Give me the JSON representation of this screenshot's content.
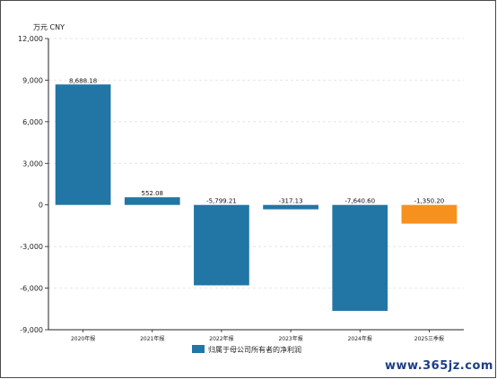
{
  "chart_data": {
    "type": "bar",
    "unit_label": "万元  CNY",
    "categories": [
      "2020年报",
      "2021年报",
      "2022年报",
      "2023年报",
      "2024年报",
      "2025三季报"
    ],
    "series": [
      {
        "name": "归属于母公司所有者的净利润",
        "values": [
          8688.18,
          552.08,
          -5799.21,
          -317.13,
          -7640.6,
          -1350.2
        ],
        "data_labels": [
          "8,688.18",
          "552.08",
          "-5,799.21",
          "-317.13",
          "-7,640.60",
          "-1,350.20"
        ]
      }
    ],
    "yticks": [
      {
        "value": 12000,
        "label": "12,000"
      },
      {
        "value": 9000,
        "label": "9,000"
      },
      {
        "value": 6000,
        "label": "6,000"
      },
      {
        "value": 3000,
        "label": "3,000"
      },
      {
        "value": 0,
        "label": "0"
      },
      {
        "value": -3000,
        "label": "-3,000"
      },
      {
        "value": -6000,
        "label": "-6,000"
      },
      {
        "value": -9000,
        "label": "-9,000"
      }
    ],
    "ylim": [
      -9000,
      12000
    ],
    "grid": true,
    "legend_position": "bottom-center",
    "colors": {
      "bar": "#2176a6",
      "highlight": "#f7911e",
      "grid": "#dcdcdc",
      "axis": "#222222"
    },
    "highlight_index": 5
  },
  "watermark": "www.365jz.com"
}
